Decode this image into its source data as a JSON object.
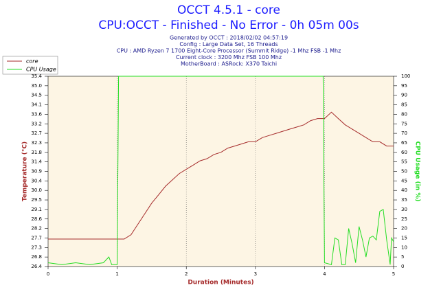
{
  "chart_data": {
    "type": "line",
    "title": "OCCT 4.5.1 - core",
    "subtitle": "CPU:OCCT - Finished - No Error - 0h 05m 00s",
    "info": [
      "Generated by OCCT : 2018/02/02 04:57:19",
      "Config : Large Data Set, 16 Threads",
      "CPU : AMD Ryzen 7 1700 Eight-Core Processor (Summit Ridge) -1 Mhz FSB -1 Mhz",
      "Current clock : 3200 Mhz FSB 100 Mhz",
      "MotherBoard : ASRock: X370 Taichi"
    ],
    "x_label": "Duration (Minutes)",
    "y_label": "Temperature (°C)",
    "y2_label": "CPU Usage (in %)",
    "xlim": [
      0,
      5
    ],
    "xticks": [
      0,
      1,
      2,
      3,
      4,
      5
    ],
    "ylim": [
      26.4,
      35.4
    ],
    "yticks": [
      {
        "value": 26.4,
        "label": "26.4"
      },
      {
        "value": 26.85,
        "label": "26.8"
      },
      {
        "value": 27.3,
        "label": "27.3"
      },
      {
        "value": 27.75,
        "label": "27.7"
      },
      {
        "value": 28.2,
        "label": "28.2"
      },
      {
        "value": 28.65,
        "label": "28.6"
      },
      {
        "value": 29.1,
        "label": "29.1"
      },
      {
        "value": 29.55,
        "label": "29.5"
      },
      {
        "value": 30.0,
        "label": "30.0"
      },
      {
        "value": 30.45,
        "label": "30.4"
      },
      {
        "value": 30.9,
        "label": "30.9"
      },
      {
        "value": 31.35,
        "label": "31.4"
      },
      {
        "value": 31.8,
        "label": "31.8"
      },
      {
        "value": 32.25,
        "label": "32.3"
      },
      {
        "value": 32.7,
        "label": "32.7"
      },
      {
        "value": 33.15,
        "label": "33.2"
      },
      {
        "value": 33.6,
        "label": "33.6"
      },
      {
        "value": 34.05,
        "label": "34.1"
      },
      {
        "value": 34.5,
        "label": "34.5"
      },
      {
        "value": 34.95,
        "label": "35.0"
      },
      {
        "value": 35.4,
        "label": "35.4"
      }
    ],
    "y2lim": [
      0,
      100
    ],
    "y2ticks": [
      0,
      5,
      10,
      15,
      20,
      25,
      30,
      35,
      40,
      45,
      50,
      55,
      60,
      65,
      70,
      75,
      80,
      85,
      90,
      95,
      100
    ],
    "grid": true,
    "series": [
      {
        "name": "core",
        "color": "#a52a2a",
        "x": [
          0,
          0.1,
          0.2,
          0.3,
          0.4,
          0.5,
          0.6,
          0.7,
          0.8,
          0.9,
          1.0,
          1.1,
          1.2,
          1.3,
          1.4,
          1.5,
          1.6,
          1.7,
          1.8,
          1.9,
          2.0,
          2.1,
          2.2,
          2.3,
          2.4,
          2.5,
          2.6,
          2.7,
          2.8,
          2.9,
          3.0,
          3.1,
          3.2,
          3.3,
          3.4,
          3.5,
          3.6,
          3.7,
          3.8,
          3.9,
          4.0,
          4.1,
          4.2,
          4.3,
          4.4,
          4.5,
          4.6,
          4.7,
          4.8,
          4.9,
          5.0
        ],
        "values": [
          27.7,
          27.7,
          27.7,
          27.7,
          27.7,
          27.7,
          27.7,
          27.7,
          27.7,
          27.7,
          27.7,
          27.7,
          27.9,
          28.4,
          28.9,
          29.4,
          29.8,
          30.2,
          30.5,
          30.8,
          31.0,
          31.2,
          31.4,
          31.5,
          31.7,
          31.8,
          32.0,
          32.1,
          32.2,
          32.3,
          32.3,
          32.5,
          32.6,
          32.7,
          32.8,
          32.9,
          33.0,
          33.1,
          33.3,
          33.4,
          33.4,
          33.7,
          33.4,
          33.1,
          32.9,
          32.7,
          32.5,
          32.3,
          32.3,
          32.1,
          32.1
        ]
      },
      {
        "name": "CPU Usage",
        "color": "#22dd22",
        "axis": "y2",
        "x": [
          0,
          0.2,
          0.4,
          0.6,
          0.8,
          0.88,
          0.92,
          1.0,
          1.02,
          3.98,
          4.0,
          4.1,
          4.15,
          4.2,
          4.25,
          4.3,
          4.35,
          4.4,
          4.45,
          4.5,
          4.55,
          4.6,
          4.65,
          4.7,
          4.75,
          4.8,
          4.85,
          4.9,
          4.95,
          4.97,
          5.0
        ],
        "values": [
          2,
          1,
          2,
          1,
          2,
          5,
          1,
          1,
          100,
          100,
          2,
          1,
          15,
          14,
          1,
          1,
          20,
          12,
          2,
          21,
          14,
          5,
          15,
          16,
          14,
          29,
          30,
          14,
          1,
          15,
          13
        ]
      }
    ]
  }
}
